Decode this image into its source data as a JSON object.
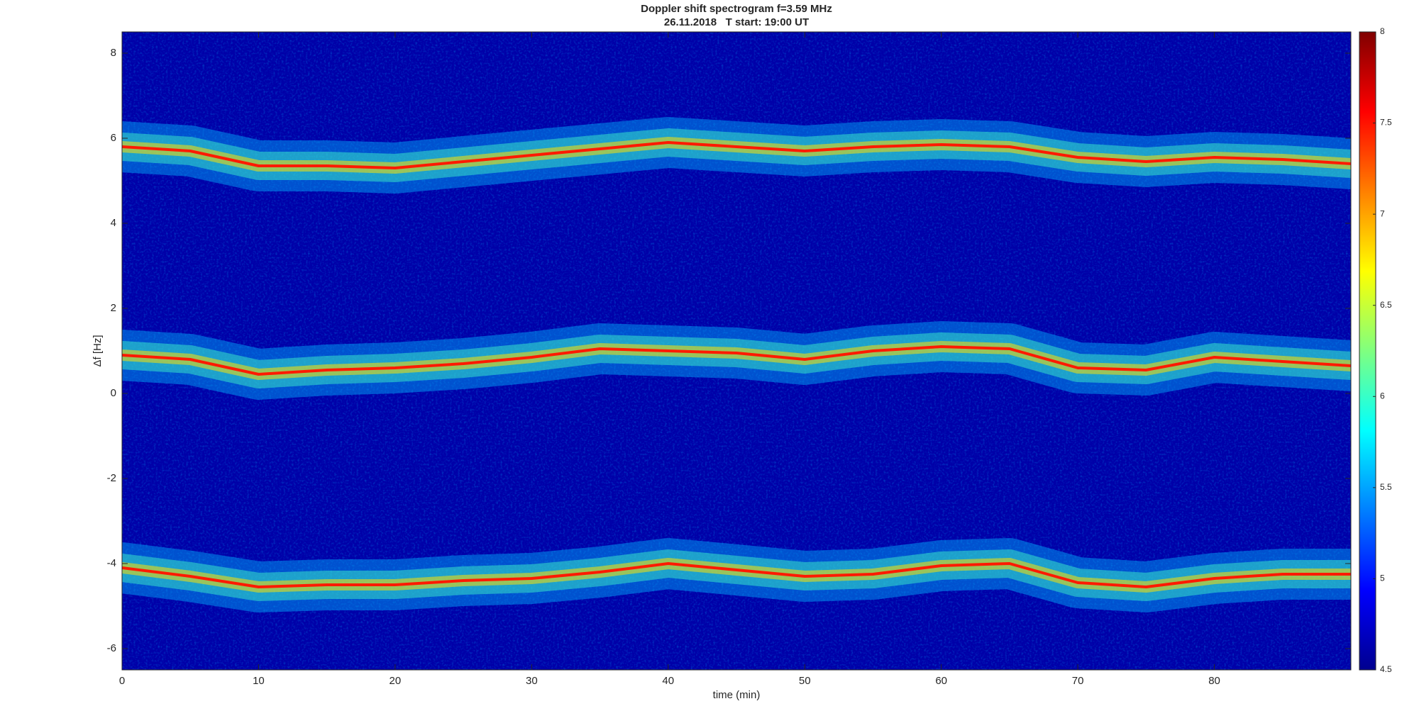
{
  "chart_data": {
    "type": "spectrogram",
    "title": "Doppler shift spectrogram f=3.59 MHz",
    "subtitle": "26.11.2018   T start: 19:00 UT",
    "x_label": "time (min)",
    "y_label": "Δf [Hz]",
    "x": [
      0,
      5,
      10,
      15,
      20,
      25,
      30,
      35,
      40,
      45,
      50,
      55,
      60,
      65,
      70,
      75,
      80,
      85,
      90
    ],
    "series": [
      {
        "color": "#ff1a00",
        "values": [
          5.8,
          5.7,
          5.35,
          5.35,
          5.3,
          5.45,
          5.6,
          5.75,
          5.9,
          5.8,
          5.7,
          5.8,
          5.85,
          5.8,
          5.55,
          5.45,
          5.55,
          5.5,
          5.4
        ]
      },
      {
        "color": "#ff1a00",
        "values": [
          0.9,
          0.8,
          0.45,
          0.55,
          0.6,
          0.7,
          0.85,
          1.05,
          1.0,
          0.95,
          0.8,
          1.0,
          1.1,
          1.05,
          0.6,
          0.55,
          0.85,
          0.75,
          0.65
        ]
      },
      {
        "color": "#ff1a00",
        "values": [
          -4.1,
          -4.3,
          -4.55,
          -4.5,
          -4.5,
          -4.4,
          -4.35,
          -4.2,
          -4.0,
          -4.15,
          -4.3,
          -4.25,
          -4.05,
          -4.0,
          -4.45,
          -4.55,
          -4.35,
          -4.25,
          -4.25
        ]
      }
    ],
    "xlim": [
      0,
      90
    ],
    "xticks": [
      0,
      10,
      20,
      30,
      40,
      50,
      60,
      70,
      80
    ],
    "ylim": [
      -6.5,
      8.5
    ],
    "yticks": [
      -6,
      -4,
      -2,
      0,
      2,
      4,
      6,
      8
    ],
    "clim": [
      4.5,
      8
    ],
    "cticks": [
      4.5,
      5,
      5.5,
      6,
      6.5,
      7,
      7.5,
      8
    ],
    "grid": false
  }
}
